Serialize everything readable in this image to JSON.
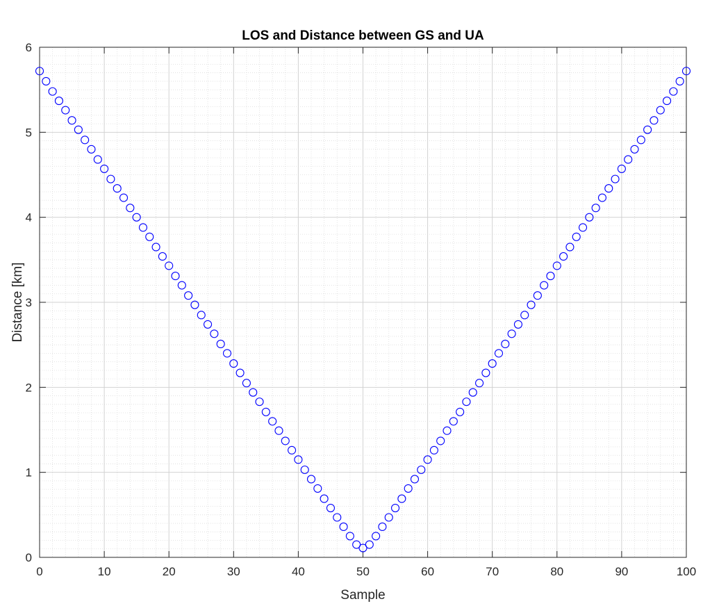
{
  "chart_data": {
    "type": "scatter",
    "title": "LOS and Distance between GS and UA",
    "xlabel": "Sample",
    "ylabel": "Distance [km]",
    "xlim": [
      0,
      100
    ],
    "ylim": [
      0,
      6
    ],
    "xticks": [
      0,
      10,
      20,
      30,
      40,
      50,
      60,
      70,
      80,
      90,
      100
    ],
    "yticks": [
      0,
      1,
      2,
      3,
      4,
      5,
      6
    ],
    "grid": true,
    "minor_grid": true,
    "legend": "none",
    "marker": "open-circle",
    "marker_color": "#0000ff",
    "series": [
      {
        "x": [
          0,
          1,
          2,
          3,
          4,
          5,
          6,
          7,
          8,
          9,
          10,
          11,
          12,
          13,
          14,
          15,
          16,
          17,
          18,
          19,
          20,
          21,
          22,
          23,
          24,
          25,
          26,
          27,
          28,
          29,
          30,
          31,
          32,
          33,
          34,
          35,
          36,
          37,
          38,
          39,
          40,
          41,
          42,
          43,
          44,
          45,
          46,
          47,
          48,
          49,
          50,
          51,
          52,
          53,
          54,
          55,
          56,
          57,
          58,
          59,
          60,
          61,
          62,
          63,
          64,
          65,
          66,
          67,
          68,
          69,
          70,
          71,
          72,
          73,
          74,
          75,
          76,
          77,
          78,
          79,
          80,
          81,
          82,
          83,
          84,
          85,
          86,
          87,
          88,
          89,
          90,
          91,
          92,
          93,
          94,
          95,
          96,
          97,
          98,
          99,
          100
        ],
        "y": [
          5.72,
          5.6,
          5.48,
          5.37,
          5.26,
          5.14,
          5.03,
          4.91,
          4.8,
          4.68,
          4.57,
          4.45,
          4.34,
          4.23,
          4.11,
          4.0,
          3.88,
          3.77,
          3.65,
          3.54,
          3.43,
          3.31,
          3.2,
          3.08,
          2.97,
          2.85,
          2.74,
          2.63,
          2.51,
          2.4,
          2.28,
          2.17,
          2.05,
          1.94,
          1.83,
          1.71,
          1.6,
          1.49,
          1.37,
          1.26,
          1.15,
          1.03,
          0.92,
          0.81,
          0.69,
          0.58,
          0.47,
          0.36,
          0.25,
          0.15,
          0.11,
          0.15,
          0.25,
          0.36,
          0.47,
          0.58,
          0.69,
          0.81,
          0.92,
          1.03,
          1.15,
          1.26,
          1.37,
          1.49,
          1.6,
          1.71,
          1.83,
          1.94,
          2.05,
          2.17,
          2.28,
          2.4,
          2.51,
          2.63,
          2.74,
          2.85,
          2.97,
          3.08,
          3.2,
          3.31,
          3.43,
          3.54,
          3.65,
          3.77,
          3.88,
          4.0,
          4.11,
          4.23,
          4.34,
          4.45,
          4.57,
          4.68,
          4.8,
          4.91,
          5.03,
          5.14,
          5.26,
          5.37,
          5.48,
          5.6,
          5.72
        ]
      }
    ]
  }
}
